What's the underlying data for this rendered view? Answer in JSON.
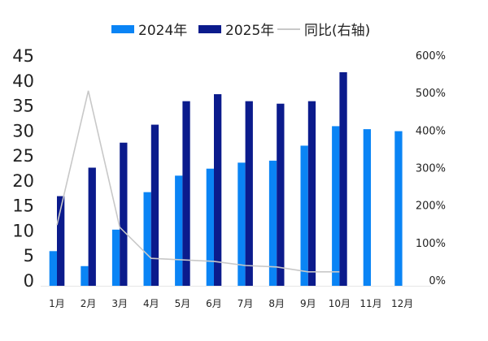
{
  "chart_data": {
    "type": "bar",
    "categories": [
      "1月",
      "2月",
      "3月",
      "4月",
      "5月",
      "6月",
      "7月",
      "8月",
      "9月",
      "10月",
      "11月",
      "12月"
    ],
    "series": [
      {
        "name": "2024年",
        "type": "bar",
        "axis": "left",
        "color": "#0a84f5",
        "values": [
          5.8,
          2.8,
          10.1,
          17.6,
          20.9,
          22.3,
          23.5,
          23.9,
          26.9,
          30.8,
          30.2,
          29.8
        ]
      },
      {
        "name": "2025年",
        "type": "bar",
        "axis": "left",
        "color": "#0b1b8c",
        "values": [
          16.8,
          22.5,
          27.5,
          31.1,
          35.8,
          37.2,
          35.8,
          35.3,
          35.8,
          41.6,
          null,
          null
        ]
      },
      {
        "name": "同比(右轴)",
        "type": "line",
        "axis": "right",
        "color": "#c8c8c8",
        "values": [
          147,
          505,
          141,
          58,
          54,
          50,
          39,
          35,
          22,
          22,
          null,
          null
        ]
      }
    ],
    "left_axis": {
      "min": 0,
      "max": 45,
      "ticks": [
        "0",
        "5",
        "10",
        "15",
        "20",
        "25",
        "30",
        "35",
        "40",
        "45"
      ]
    },
    "right_axis": {
      "min": 0,
      "max": 600,
      "ticks": [
        "0%",
        "100%",
        "200%",
        "300%",
        "400%",
        "500%",
        "600%"
      ]
    },
    "legend_position": "top",
    "grid": false
  }
}
